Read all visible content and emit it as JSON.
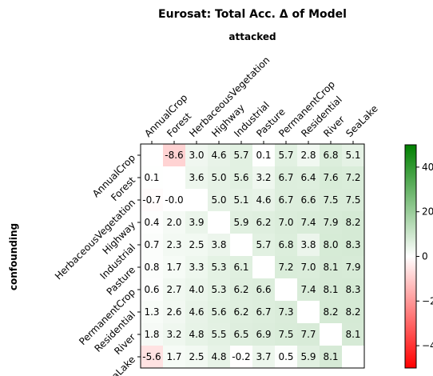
{
  "chart_data": {
    "type": "heatmap",
    "title": "Eurosat: Total Acc. Δ of Model",
    "xlabel": "attacked",
    "ylabel": "confounding",
    "x_categories": [
      "AnnualCrop",
      "Forest",
      "HerbaceousVegetation",
      "Highway",
      "Industrial",
      "Pasture",
      "PermanentCrop",
      "Residential",
      "River",
      "SeaLake"
    ],
    "y_categories": [
      "AnnualCrop",
      "Forest",
      "HerbaceousVegetation",
      "Highway",
      "Industrial",
      "Pasture",
      "PermanentCrop",
      "Residential",
      "River",
      "SeaLake"
    ],
    "values": [
      [
        null,
        -8.6,
        3.0,
        4.6,
        5.7,
        0.1,
        5.7,
        2.8,
        6.8,
        5.1
      ],
      [
        0.1,
        null,
        3.6,
        5.0,
        5.6,
        3.2,
        6.7,
        6.4,
        7.6,
        7.2
      ],
      [
        -0.7,
        -0.0,
        null,
        5.0,
        5.1,
        4.6,
        6.7,
        6.6,
        7.5,
        7.5
      ],
      [
        0.4,
        2.0,
        3.9,
        null,
        5.9,
        6.2,
        7.0,
        7.4,
        7.9,
        8.2
      ],
      [
        0.7,
        2.3,
        2.5,
        3.8,
        null,
        5.7,
        6.8,
        3.8,
        8.0,
        8.3
      ],
      [
        0.8,
        1.7,
        3.3,
        5.3,
        6.1,
        null,
        7.2,
        7.0,
        8.1,
        7.9
      ],
      [
        0.6,
        2.7,
        4.0,
        5.3,
        6.2,
        6.6,
        null,
        7.4,
        8.1,
        8.3
      ],
      [
        1.3,
        2.6,
        4.6,
        5.6,
        6.2,
        6.7,
        7.3,
        null,
        8.2,
        8.2
      ],
      [
        1.8,
        3.2,
        4.8,
        5.5,
        6.5,
        6.9,
        7.5,
        7.7,
        null,
        8.1
      ],
      [
        -5.6,
        1.7,
        2.5,
        4.8,
        -0.2,
        3.7,
        0.5,
        5.9,
        8.1,
        null
      ]
    ],
    "colorbar": {
      "range": [
        -50,
        50
      ],
      "ticks": [
        -40,
        -20,
        0,
        20,
        40
      ],
      "colors": [
        "#ff0000",
        "#ffffff",
        "#008000"
      ]
    },
    "grid": false,
    "legend": "colorbar-right"
  }
}
